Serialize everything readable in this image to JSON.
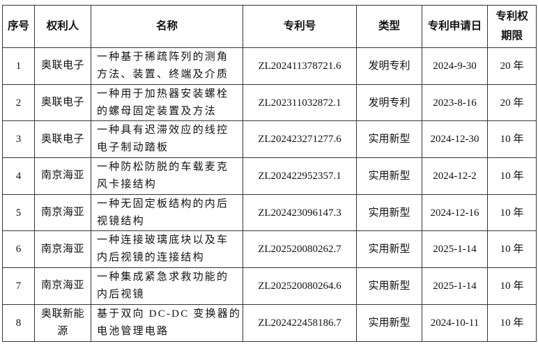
{
  "table": {
    "headers": [
      "序号",
      "权利人",
      "名称",
      "专利号",
      "类型",
      "专利申请日",
      "专利权期限"
    ],
    "header_term_lines": [
      "专利权",
      "期限"
    ],
    "rows": [
      {
        "no": "1",
        "owner": "奥联电子",
        "name_lines": [
          "一种基于稀疏阵列的测角",
          "方法、装置、终端及介质"
        ],
        "patent_no": "ZL202411378721.6",
        "type": "发明专利",
        "date": "2024-9-30",
        "term": "20 年"
      },
      {
        "no": "2",
        "owner": "奥联电子",
        "name_lines": [
          "一种用于加热器安装螺栓",
          "的螺母固定装置及方法"
        ],
        "patent_no": "ZL202311032872.1",
        "type": "发明专利",
        "date": "2023-8-16",
        "term": "20 年"
      },
      {
        "no": "3",
        "owner": "奥联电子",
        "name_lines": [
          "一种具有迟滞效应的线控",
          "电子制动踏板"
        ],
        "patent_no": "ZL202423271277.6",
        "type": "实用新型",
        "date": "2024-12-30",
        "term": "10 年"
      },
      {
        "no": "4",
        "owner": "南京海亚",
        "name_lines": [
          "一种防松防脱的车载麦克",
          "风卡接结构"
        ],
        "patent_no": "ZL202422952357.1",
        "type": "实用新型",
        "date": "2024-12-2",
        "term": "10 年"
      },
      {
        "no": "5",
        "owner": "南京海亚",
        "name_lines": [
          "一种无固定板结构的内后",
          "视镜结构"
        ],
        "patent_no": "ZL202423096147.3",
        "type": "实用新型",
        "date": "2024-12-16",
        "term": "10 年"
      },
      {
        "no": "6",
        "owner": "南京海亚",
        "name_lines": [
          "一种连接玻璃底块以及车",
          "内后视镜的连接结构"
        ],
        "patent_no": "ZL202520080262.7",
        "type": "实用新型",
        "date": "2025-1-14",
        "term": "10 年"
      },
      {
        "no": "7",
        "owner": "南京海亚",
        "name_lines": [
          "一种集成紧急求救功能的",
          "内后视镜"
        ],
        "patent_no": "ZL202520080264.6",
        "type": "实用新型",
        "date": "2025-1-14",
        "term": "10 年"
      },
      {
        "no": "8",
        "owner_lines": [
          "奥联新能",
          "源"
        ],
        "name_lines": [
          "基于双向 DC-DC 变换器的",
          "电池管理电路"
        ],
        "patent_no": "ZL202422458186.7",
        "type": "实用新型",
        "date": "2024-10-11",
        "term": "10 年"
      }
    ]
  }
}
